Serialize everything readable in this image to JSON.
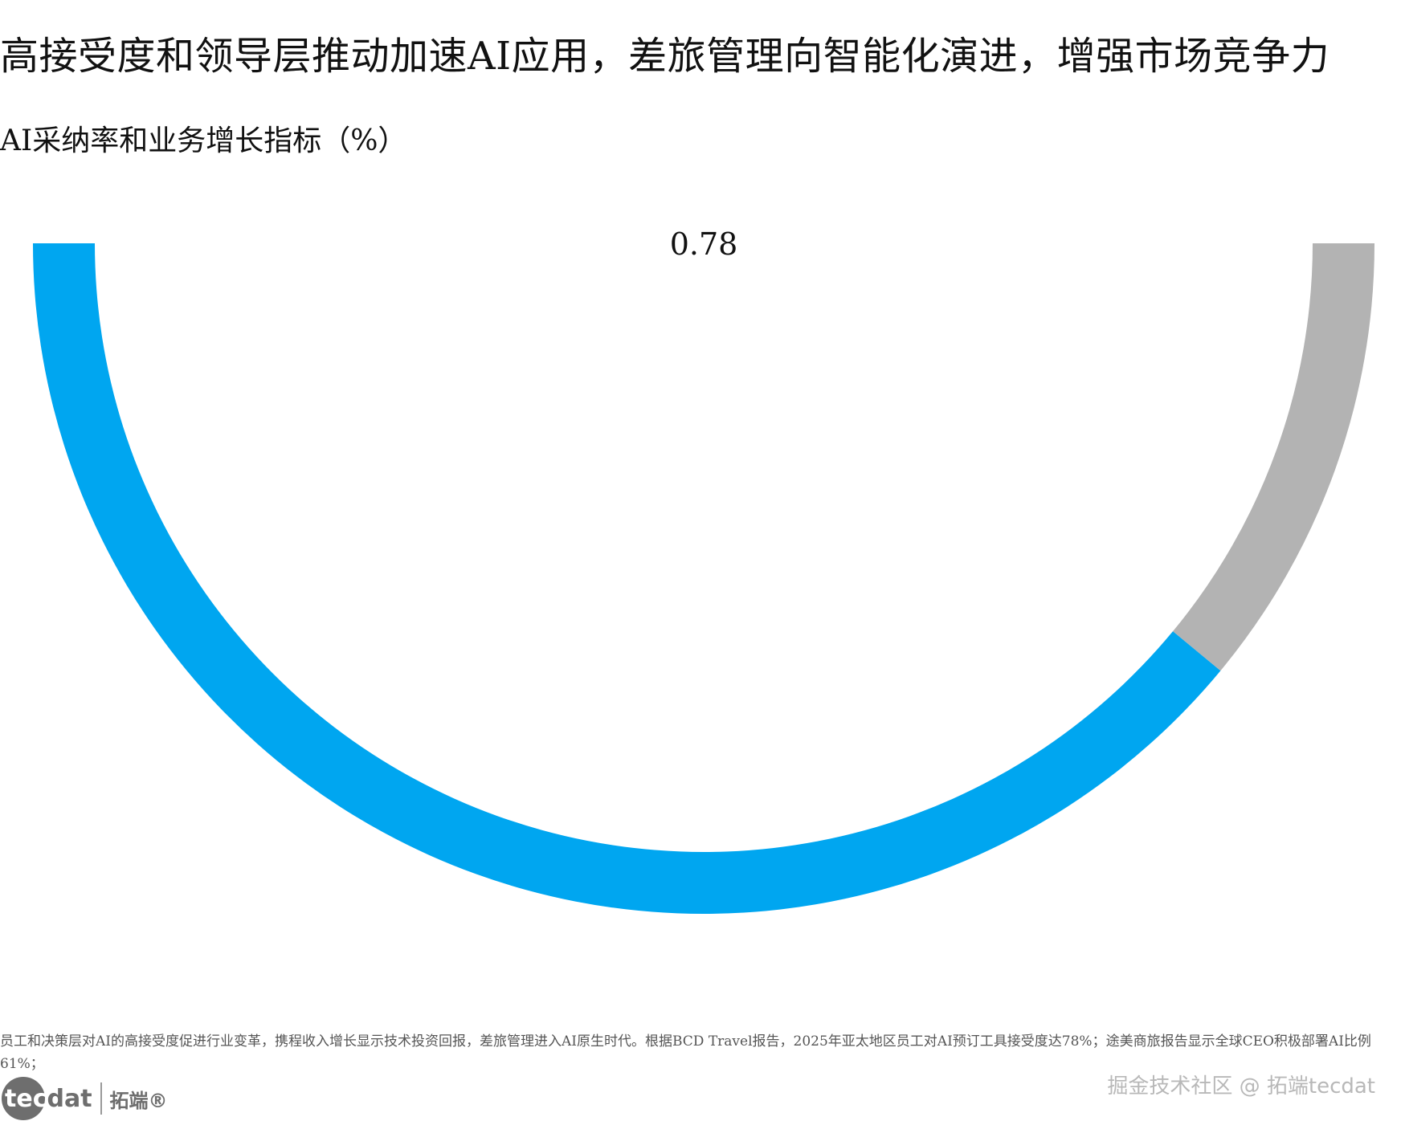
{
  "page": {
    "title": "高接受度和领导层推动加速AI应用，差旅管理向智能化演进，增强市场竞争力",
    "subtitle": "AI采纳率和业务增长指标（%）",
    "footnote": "员工和决策层对AI的高接受度促进行业变革，携程收入增长显示技术投资回报，差旅管理进入AI原生时代。根据BCD Travel报告，2025年亚太地区员工对AI预订工具接受度达78%；途美商旅报告显示全球CEO积极部署AI比例61%；",
    "logo": {
      "tec": "tec",
      "dat": "dat",
      "cn": "拓端®"
    },
    "watermark": "掘金技术社区 @ 拓端tecdat"
  },
  "chart_data": {
    "type": "gauge",
    "value": 0.78,
    "value_label": "0.78",
    "max": 1,
    "filled_color": "#00a6f0",
    "remainder_color": "#b3b3b3"
  }
}
